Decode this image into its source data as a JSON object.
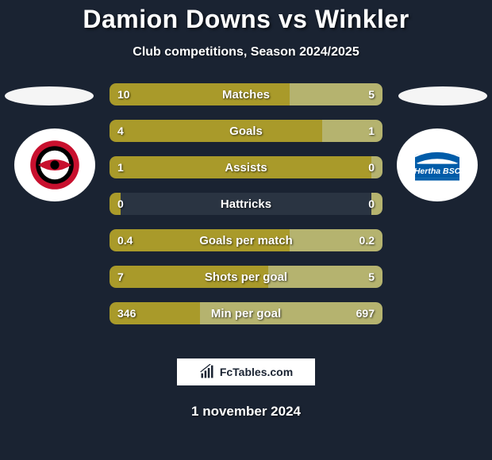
{
  "title": "Damion Downs vs Winkler",
  "subtitle": "Club competitions, Season 2024/2025",
  "date": "1 november 2024",
  "branding": "FcTables.com",
  "colors": {
    "background": "#1a2332",
    "bar_left": "#a99a2a",
    "bar_right": "#b5b36f",
    "bar_track": "#2a3442",
    "text": "#ffffff"
  },
  "crest_left": {
    "name": "carolina-hurricanes-style",
    "primary": "#c8102e",
    "secondary": "#000000"
  },
  "crest_right": {
    "name": "hertha-bsc",
    "primary": "#005ca9",
    "secondary": "#ffffff"
  },
  "rows": [
    {
      "label": "Matches",
      "left_val": "10",
      "right_val": "5",
      "left_pct": 66,
      "right_pct": 34
    },
    {
      "label": "Goals",
      "left_val": "4",
      "right_val": "1",
      "left_pct": 78,
      "right_pct": 22
    },
    {
      "label": "Assists",
      "left_val": "1",
      "right_val": "0",
      "left_pct": 96,
      "right_pct": 4
    },
    {
      "label": "Hattricks",
      "left_val": "0",
      "right_val": "0",
      "left_pct": 4,
      "right_pct": 4
    },
    {
      "label": "Goals per match",
      "left_val": "0.4",
      "right_val": "0.2",
      "left_pct": 66,
      "right_pct": 34
    },
    {
      "label": "Shots per goal",
      "left_val": "7",
      "right_val": "5",
      "left_pct": 58,
      "right_pct": 42
    },
    {
      "label": "Min per goal",
      "left_val": "346",
      "right_val": "697",
      "left_pct": 33,
      "right_pct": 67
    }
  ]
}
